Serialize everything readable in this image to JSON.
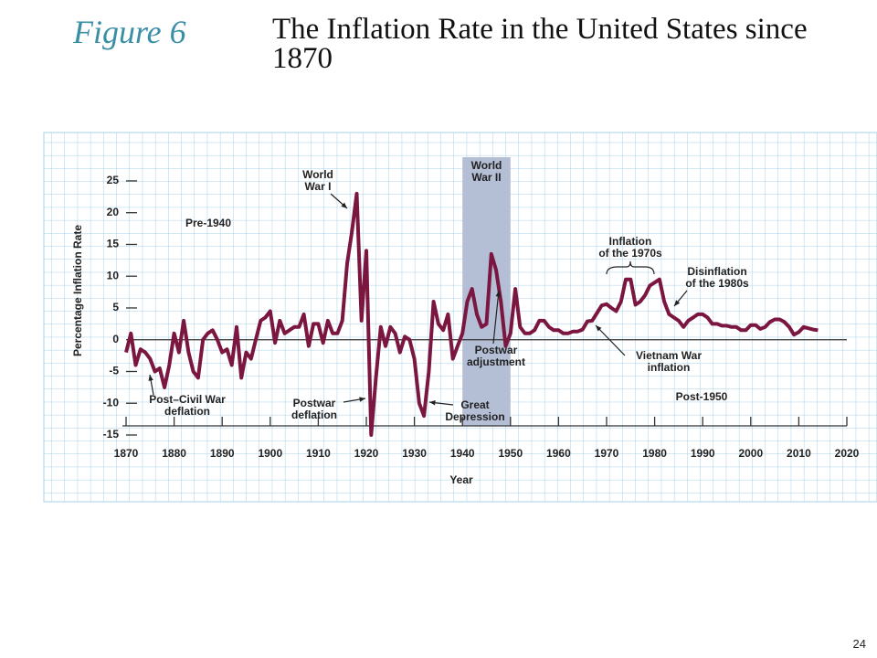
{
  "figure_label": "Figure 6",
  "page_number": "24",
  "chart_data": {
    "type": "line",
    "title": "The Inflation Rate in the United States since 1870",
    "x_label": "Year",
    "y_label": "Percentage Inflation Rate",
    "xlim": [
      1870,
      2020
    ],
    "ylim": [
      -15,
      26
    ],
    "xticks": [
      1870,
      1880,
      1890,
      1900,
      1910,
      1920,
      1930,
      1940,
      1950,
      1960,
      1970,
      1980,
      1990,
      2000,
      2010,
      2020
    ],
    "yticks": [
      -15,
      -10,
      -5,
      0,
      5,
      10,
      15,
      20,
      25
    ],
    "shaded_region": {
      "x": [
        1940,
        1950
      ],
      "label_lines": [
        "World",
        "War II"
      ],
      "color": "#b4bfd6"
    },
    "annotations": [
      {
        "lines": [
          "World",
          "War I"
        ]
      },
      {
        "lines": [
          "Pre-1940"
        ]
      },
      {
        "lines": [
          "Post–Civil War",
          "deflation"
        ]
      },
      {
        "lines": [
          "Postwar",
          "deflation"
        ]
      },
      {
        "lines": [
          "Great",
          "Depression"
        ]
      },
      {
        "lines": [
          "Postwar",
          "adjustment"
        ]
      },
      {
        "lines": [
          "Inflation",
          "of the 1970s"
        ]
      },
      {
        "lines": [
          "Disinflation",
          "of the 1980s"
        ]
      },
      {
        "lines": [
          "Vietnam War",
          "inflation"
        ]
      },
      {
        "lines": [
          "Post-1950"
        ]
      }
    ],
    "series": [
      {
        "name": "Inflation rate",
        "color": "#7a1640",
        "x": [
          1870,
          1871,
          1872,
          1873,
          1874,
          1875,
          1876,
          1877,
          1878,
          1879,
          1880,
          1881,
          1882,
          1883,
          1884,
          1885,
          1886,
          1887,
          1888,
          1889,
          1890,
          1891,
          1892,
          1893,
          1894,
          1895,
          1896,
          1897,
          1898,
          1899,
          1900,
          1901,
          1902,
          1903,
          1904,
          1905,
          1906,
          1907,
          1908,
          1909,
          1910,
          1911,
          1912,
          1913,
          1914,
          1915,
          1916,
          1917,
          1918,
          1919,
          1920,
          1921,
          1922,
          1923,
          1924,
          1925,
          1926,
          1927,
          1928,
          1929,
          1930,
          1931,
          1932,
          1933,
          1934,
          1935,
          1936,
          1937,
          1938,
          1939,
          1940,
          1941,
          1942,
          1943,
          1944,
          1945,
          1946,
          1947,
          1948,
          1949,
          1950,
          1951,
          1952,
          1953,
          1954,
          1955,
          1956,
          1957,
          1958,
          1959,
          1960,
          1961,
          1962,
          1963,
          1964,
          1965,
          1966,
          1967,
          1968,
          1969,
          1970,
          1971,
          1972,
          1973,
          1974,
          1975,
          1976,
          1977,
          1978,
          1979,
          1980,
          1981,
          1982,
          1983,
          1984,
          1985,
          1986,
          1987,
          1988,
          1989,
          1990,
          1991,
          1992,
          1993,
          1994,
          1995,
          1996,
          1997,
          1998,
          1999,
          2000,
          2001,
          2002,
          2003,
          2004,
          2005,
          2006,
          2007,
          2008,
          2009,
          2010,
          2011,
          2012,
          2013,
          2014
        ],
        "values": [
          -2,
          1,
          -4,
          -1.5,
          -2,
          -3,
          -5,
          -4.5,
          -7.5,
          -4,
          1,
          -2,
          3,
          -2,
          -5,
          -6,
          0,
          1,
          1.5,
          0,
          -2,
          -1.5,
          -4,
          2,
          -6,
          -2,
          -3,
          0,
          3,
          3.5,
          4.5,
          -0.5,
          3,
          1,
          1.5,
          2,
          2,
          4,
          -1,
          2.5,
          2.5,
          -0.5,
          3,
          1,
          1,
          3,
          12,
          17,
          23,
          3,
          14,
          -15,
          -6,
          2,
          -1,
          2,
          1,
          -2,
          0.5,
          0,
          -3,
          -10,
          -12,
          -5,
          6,
          2.5,
          1.5,
          4,
          -3,
          -1,
          1,
          6,
          8,
          4,
          2,
          2.5,
          13.5,
          11,
          6,
          -1,
          1,
          8,
          2,
          1,
          1,
          1.5,
          3,
          3,
          2,
          1.5,
          1.5,
          1,
          1,
          1.3,
          1.3,
          1.6,
          2.9,
          3,
          4.2,
          5.4,
          5.6,
          5,
          4.5,
          6,
          9.5,
          9.5,
          5.5,
          6,
          7,
          8.5,
          9,
          9.5,
          6,
          4,
          3.5,
          3,
          2,
          3,
          3.5,
          4,
          4,
          3.5,
          2.5,
          2.5,
          2.2,
          2.2,
          2,
          2,
          1.5,
          1.5,
          2.3,
          2.3,
          1.7,
          2,
          2.8,
          3.2,
          3.2,
          2.8,
          2,
          0.8,
          1.2,
          2,
          1.8,
          1.6,
          1.5
        ]
      }
    ]
  }
}
